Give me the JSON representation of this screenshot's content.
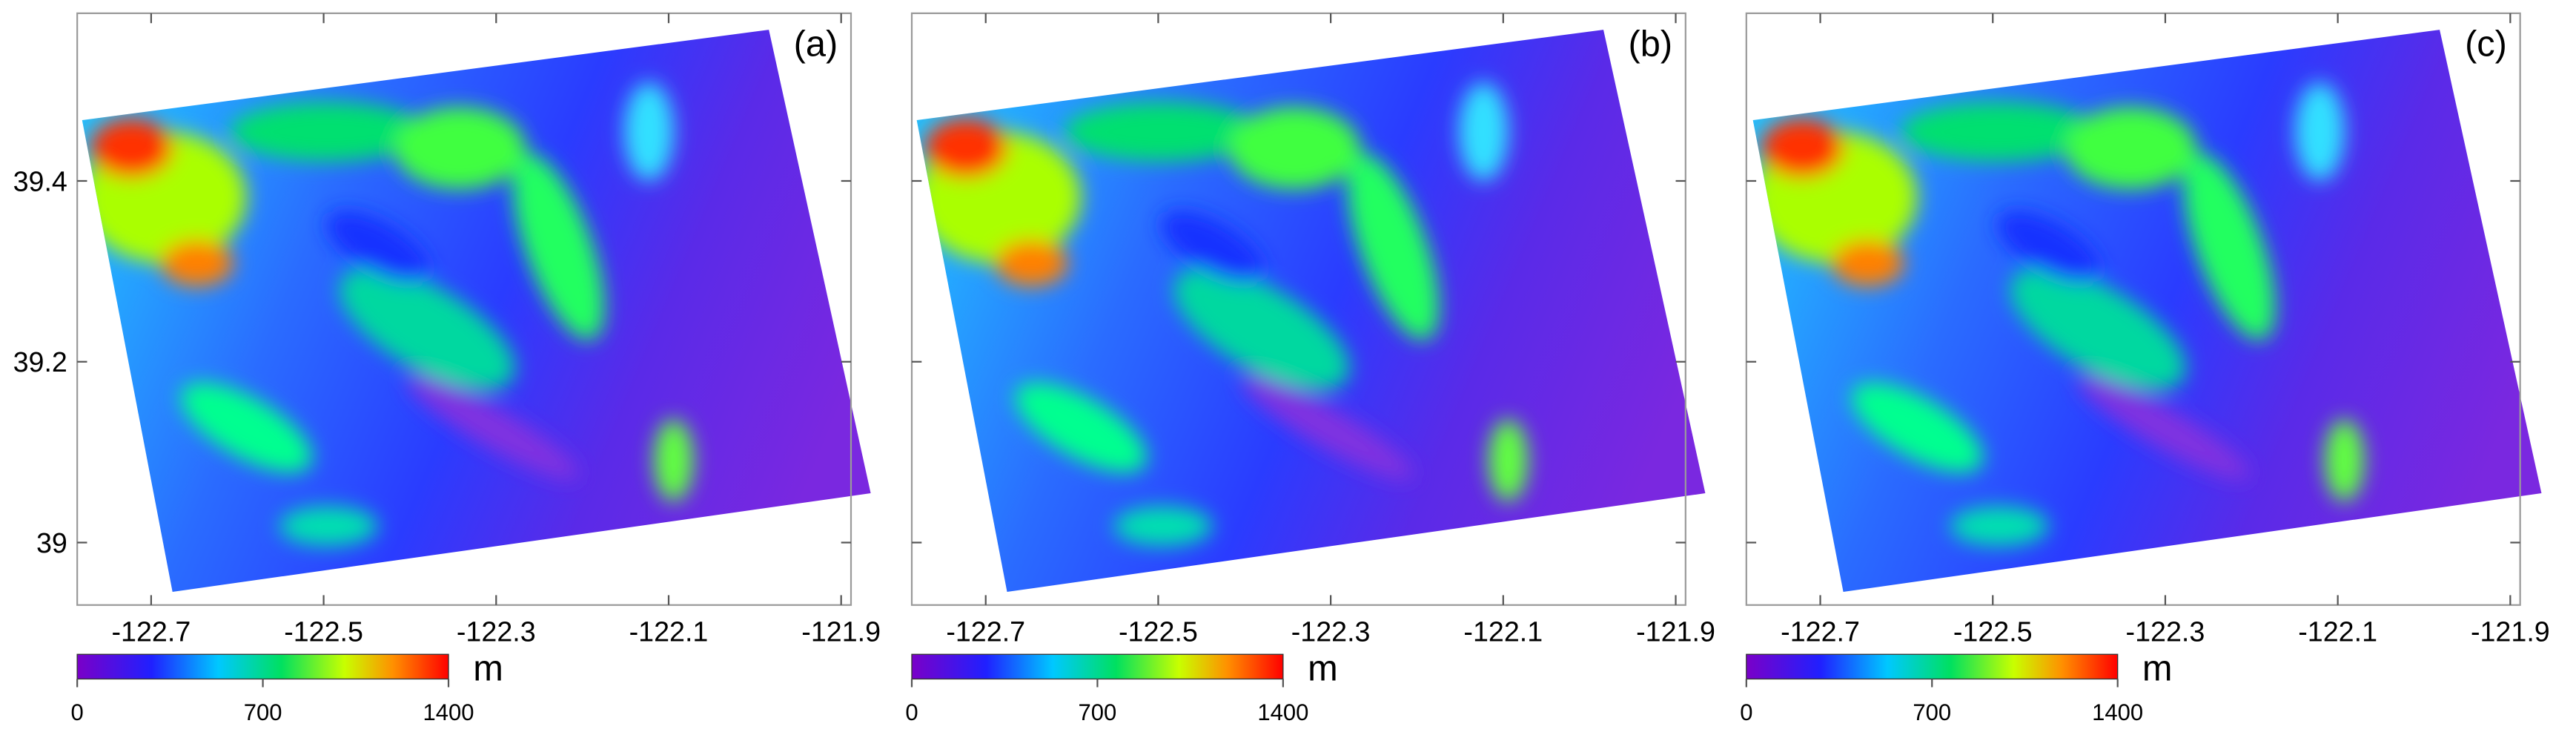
{
  "panels": [
    {
      "label": "(a)",
      "xticks": [
        -122.7,
        -122.5,
        -122.3,
        -122.1,
        -121.9
      ],
      "yticks": [
        39.4,
        39.2,
        39
      ],
      "colorbar": {
        "unit": "m",
        "ticks": [
          0,
          700,
          1400
        ]
      }
    },
    {
      "label": "(b)",
      "xticks": [
        -122.7,
        -122.5,
        -122.3,
        -122.1,
        -121.9
      ],
      "colorbar": {
        "unit": "m",
        "ticks": [
          0,
          700,
          1400
        ]
      }
    },
    {
      "label": "(c)",
      "xticks": [
        -122.7,
        -122.5,
        -122.3,
        -122.1,
        -121.9
      ],
      "colorbar": {
        "unit": "m",
        "ticks": [
          0,
          700,
          1400
        ]
      }
    }
  ]
}
